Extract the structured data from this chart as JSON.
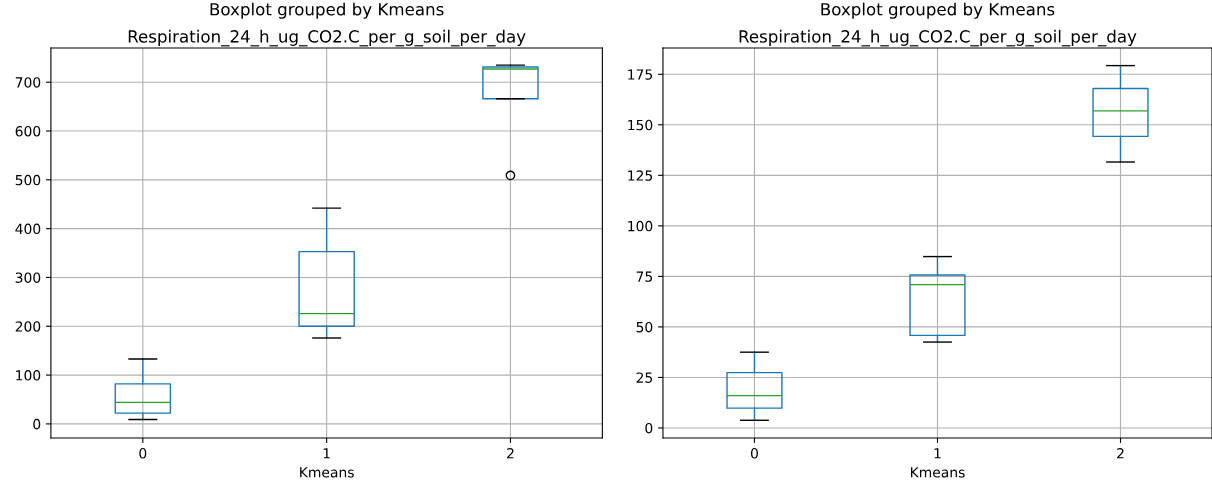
{
  "chart_data": [
    {
      "type": "box",
      "title": "Boxplot grouped by Kmeans",
      "subtitle": "Respiration_24_h_ug_CO2.C_per_g_soil_per_day",
      "xlabel": "Kmeans",
      "categories": [
        "0",
        "1",
        "2"
      ],
      "ylim": [
        -29,
        770
      ],
      "yticks": [
        0,
        100,
        200,
        300,
        400,
        500,
        600,
        700
      ],
      "grid": true,
      "series": [
        {
          "color": "#1f77b4",
          "boxes": [
            {
              "low": 9,
              "q1": 22,
              "median": 44,
              "q3": 82,
              "high": 133
            },
            {
              "low": 176,
              "q1": 200,
              "median": 226,
              "q3": 353,
              "high": 442
            },
            {
              "low": 666,
              "q1": 666,
              "median": 727,
              "q3": 731,
              "high": 735,
              "outliers": [
                509
              ]
            }
          ]
        }
      ]
    },
    {
      "type": "box",
      "title": "Boxplot grouped by Kmeans",
      "subtitle": "Respiration_24_h_ug_CO2.C_per_g_soil_per_day",
      "xlabel": "Kmeans",
      "categories": [
        "0",
        "1",
        "2"
      ],
      "ylim": [
        -5,
        188
      ],
      "yticks": [
        0,
        25,
        50,
        75,
        100,
        125,
        150,
        175
      ],
      "grid": true,
      "series": [
        {
          "color": "#1f77b4",
          "boxes": [
            {
              "low": 3.8,
              "q1": 9.8,
              "median": 16,
              "q3": 27.4,
              "high": 37.5
            },
            {
              "low": 42.5,
              "q1": 45.8,
              "median": 70.9,
              "q3": 75.7,
              "high": 84.8
            },
            {
              "low": 131.6,
              "q1": 144.3,
              "median": 156.9,
              "q3": 168,
              "high": 179.3
            }
          ]
        }
      ]
    }
  ]
}
